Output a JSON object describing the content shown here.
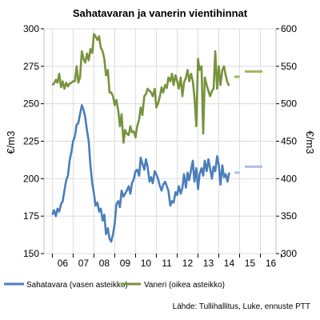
{
  "chart_data": {
    "type": "line",
    "title": "Sahatavaran ja vanerin vientihinnat",
    "ylabel_left": "€/m3",
    "ylabel_right": "€/m3",
    "ylim_left": [
      150,
      300
    ],
    "ylim_right": [
      300,
      600
    ],
    "yticks_left": [
      "300",
      "275",
      "250",
      "225",
      "200",
      "175",
      "150"
    ],
    "yticks_right": [
      "600",
      "550",
      "500",
      "450",
      "400",
      "350",
      "300"
    ],
    "x_categories": [
      "06",
      "07",
      "08",
      "09",
      "10",
      "11",
      "12",
      "13",
      "14",
      "15",
      "16"
    ],
    "grid": true,
    "legend_position": "bottom",
    "series": [
      {
        "name": "Sahatavara (vasen asteikko)",
        "axis": "left",
        "color": "#4a7ebb",
        "x": [
          2006.0,
          2006.08,
          2006.17,
          2006.25,
          2006.33,
          2006.42,
          2006.5,
          2006.58,
          2006.67,
          2006.75,
          2006.83,
          2006.92,
          2007.0,
          2007.08,
          2007.17,
          2007.25,
          2007.33,
          2007.42,
          2007.5,
          2007.58,
          2007.67,
          2007.75,
          2007.83,
          2007.92,
          2008.0,
          2008.08,
          2008.17,
          2008.25,
          2008.33,
          2008.42,
          2008.5,
          2008.58,
          2008.67,
          2008.75,
          2008.83,
          2008.92,
          2009.0,
          2009.08,
          2009.17,
          2009.25,
          2009.33,
          2009.42,
          2009.5,
          2009.58,
          2009.67,
          2009.75,
          2009.83,
          2009.92,
          2010.0,
          2010.08,
          2010.17,
          2010.25,
          2010.33,
          2010.42,
          2010.5,
          2010.58,
          2010.67,
          2010.75,
          2010.83,
          2010.92,
          2011.0,
          2011.08,
          2011.17,
          2011.25,
          2011.33,
          2011.42,
          2011.5,
          2011.58,
          2011.67,
          2011.75,
          2011.83,
          2011.92,
          2012.0,
          2012.08,
          2012.17,
          2012.25,
          2012.33,
          2012.42,
          2012.5,
          2012.58,
          2012.67,
          2012.75,
          2012.83,
          2012.92,
          2013.0,
          2013.08,
          2013.17,
          2013.25,
          2013.33,
          2013.42,
          2013.5,
          2013.58,
          2013.67,
          2013.75,
          2013.83,
          2013.92,
          2014.0,
          2014.08,
          2014.17,
          2014.25,
          2014.33,
          2014.42,
          2014.5
        ],
        "values": [
          176,
          179,
          175,
          180,
          178,
          183,
          185,
          192,
          199,
          202,
          212,
          218,
          225,
          228,
          236,
          237,
          243,
          249,
          246,
          241,
          232,
          225,
          209,
          197,
          190,
          182,
          184,
          178,
          180,
          172,
          176,
          163,
          167,
          160,
          158,
          163,
          170,
          183,
          185,
          181,
          192,
          188,
          190,
          192,
          195,
          190,
          197,
          200,
          205,
          206,
          202,
          214,
          210,
          206,
          213,
          208,
          198,
          201,
          197,
          205,
          203,
          200,
          195,
          192,
          196,
          198,
          195,
          192,
          182,
          185,
          184,
          191,
          189,
          195,
          190,
          194,
          203,
          194,
          204,
          199,
          206,
          212,
          198,
          207,
          193,
          203,
          207,
          202,
          212,
          205,
          213,
          207,
          200,
          208,
          205,
          215,
          209,
          196,
          209,
          201,
          203,
          198,
          204
        ]
      },
      {
        "name": "Vaneri (oikea asteikko)",
        "axis": "right",
        "color": "#77933c",
        "x": [
          2006.0,
          2006.08,
          2006.17,
          2006.25,
          2006.33,
          2006.42,
          2006.5,
          2006.58,
          2006.67,
          2006.75,
          2006.83,
          2006.92,
          2007.0,
          2007.08,
          2007.17,
          2007.25,
          2007.33,
          2007.42,
          2007.5,
          2007.58,
          2007.67,
          2007.75,
          2007.83,
          2007.92,
          2008.0,
          2008.08,
          2008.17,
          2008.25,
          2008.33,
          2008.42,
          2008.5,
          2008.58,
          2008.67,
          2008.75,
          2008.83,
          2008.92,
          2009.0,
          2009.08,
          2009.17,
          2009.25,
          2009.33,
          2009.42,
          2009.5,
          2009.58,
          2009.67,
          2009.75,
          2009.83,
          2009.92,
          2010.0,
          2010.08,
          2010.17,
          2010.25,
          2010.33,
          2010.42,
          2010.5,
          2010.58,
          2010.67,
          2010.75,
          2010.83,
          2010.92,
          2011.0,
          2011.08,
          2011.17,
          2011.25,
          2011.33,
          2011.42,
          2011.5,
          2011.58,
          2011.67,
          2011.75,
          2011.83,
          2011.92,
          2012.0,
          2012.08,
          2012.17,
          2012.25,
          2012.33,
          2012.42,
          2012.5,
          2012.58,
          2012.67,
          2012.75,
          2012.83,
          2012.92,
          2013.0,
          2013.08,
          2013.17,
          2013.25,
          2013.33,
          2013.42,
          2013.5,
          2013.58,
          2013.67,
          2013.75,
          2013.83,
          2013.92,
          2014.0,
          2014.08,
          2014.17,
          2014.25,
          2014.33,
          2014.42,
          2014.5
        ],
        "values": [
          525,
          527,
          532,
          528,
          540,
          522,
          530,
          520,
          528,
          523,
          527,
          528,
          530,
          530,
          550,
          528,
          535,
          570,
          560,
          555,
          567,
          558,
          573,
          568,
          593,
          590,
          585,
          590,
          575,
          570,
          560,
          538,
          545,
          515,
          515,
          510,
          498,
          505,
          490,
          470,
          486,
          448,
          465,
          460,
          458,
          470,
          462,
          463,
          455,
          470,
          479,
          495,
          485,
          510,
          513,
          520,
          517,
          515,
          510,
          520,
          495,
          500,
          510,
          522,
          515,
          525,
          521,
          535,
          530,
          540,
          525,
          538,
          530,
          520,
          535,
          510,
          528,
          535,
          545,
          530,
          540,
          530,
          510,
          470,
          560,
          545,
          550,
          460,
          535,
          525,
          517,
          510,
          517,
          520,
          570,
          520,
          550,
          525,
          545,
          550,
          538,
          528,
          524
        ]
      }
    ],
    "forecasts": [
      {
        "series": "Sahatavara",
        "axis": "left",
        "color": "#a8c3e8",
        "x": [
          2014.75,
          2015.0
        ],
        "y": 204
      },
      {
        "series": "Sahatavara",
        "axis": "left",
        "color": "#a8c3e8",
        "x": [
          2015.25,
          2016.1
        ],
        "y": 208
      },
      {
        "series": "Vaneri",
        "axis": "right",
        "color": "#9bbb59",
        "x": [
          2014.75,
          2015.0
        ],
        "y": 536
      },
      {
        "series": "Vaneri",
        "axis": "right",
        "color": "#9bbb59",
        "x": [
          2015.25,
          2016.1
        ],
        "y": 543
      }
    ]
  },
  "source_text": "Lähde: Tullihallitus, Luke, ennuste PTT"
}
